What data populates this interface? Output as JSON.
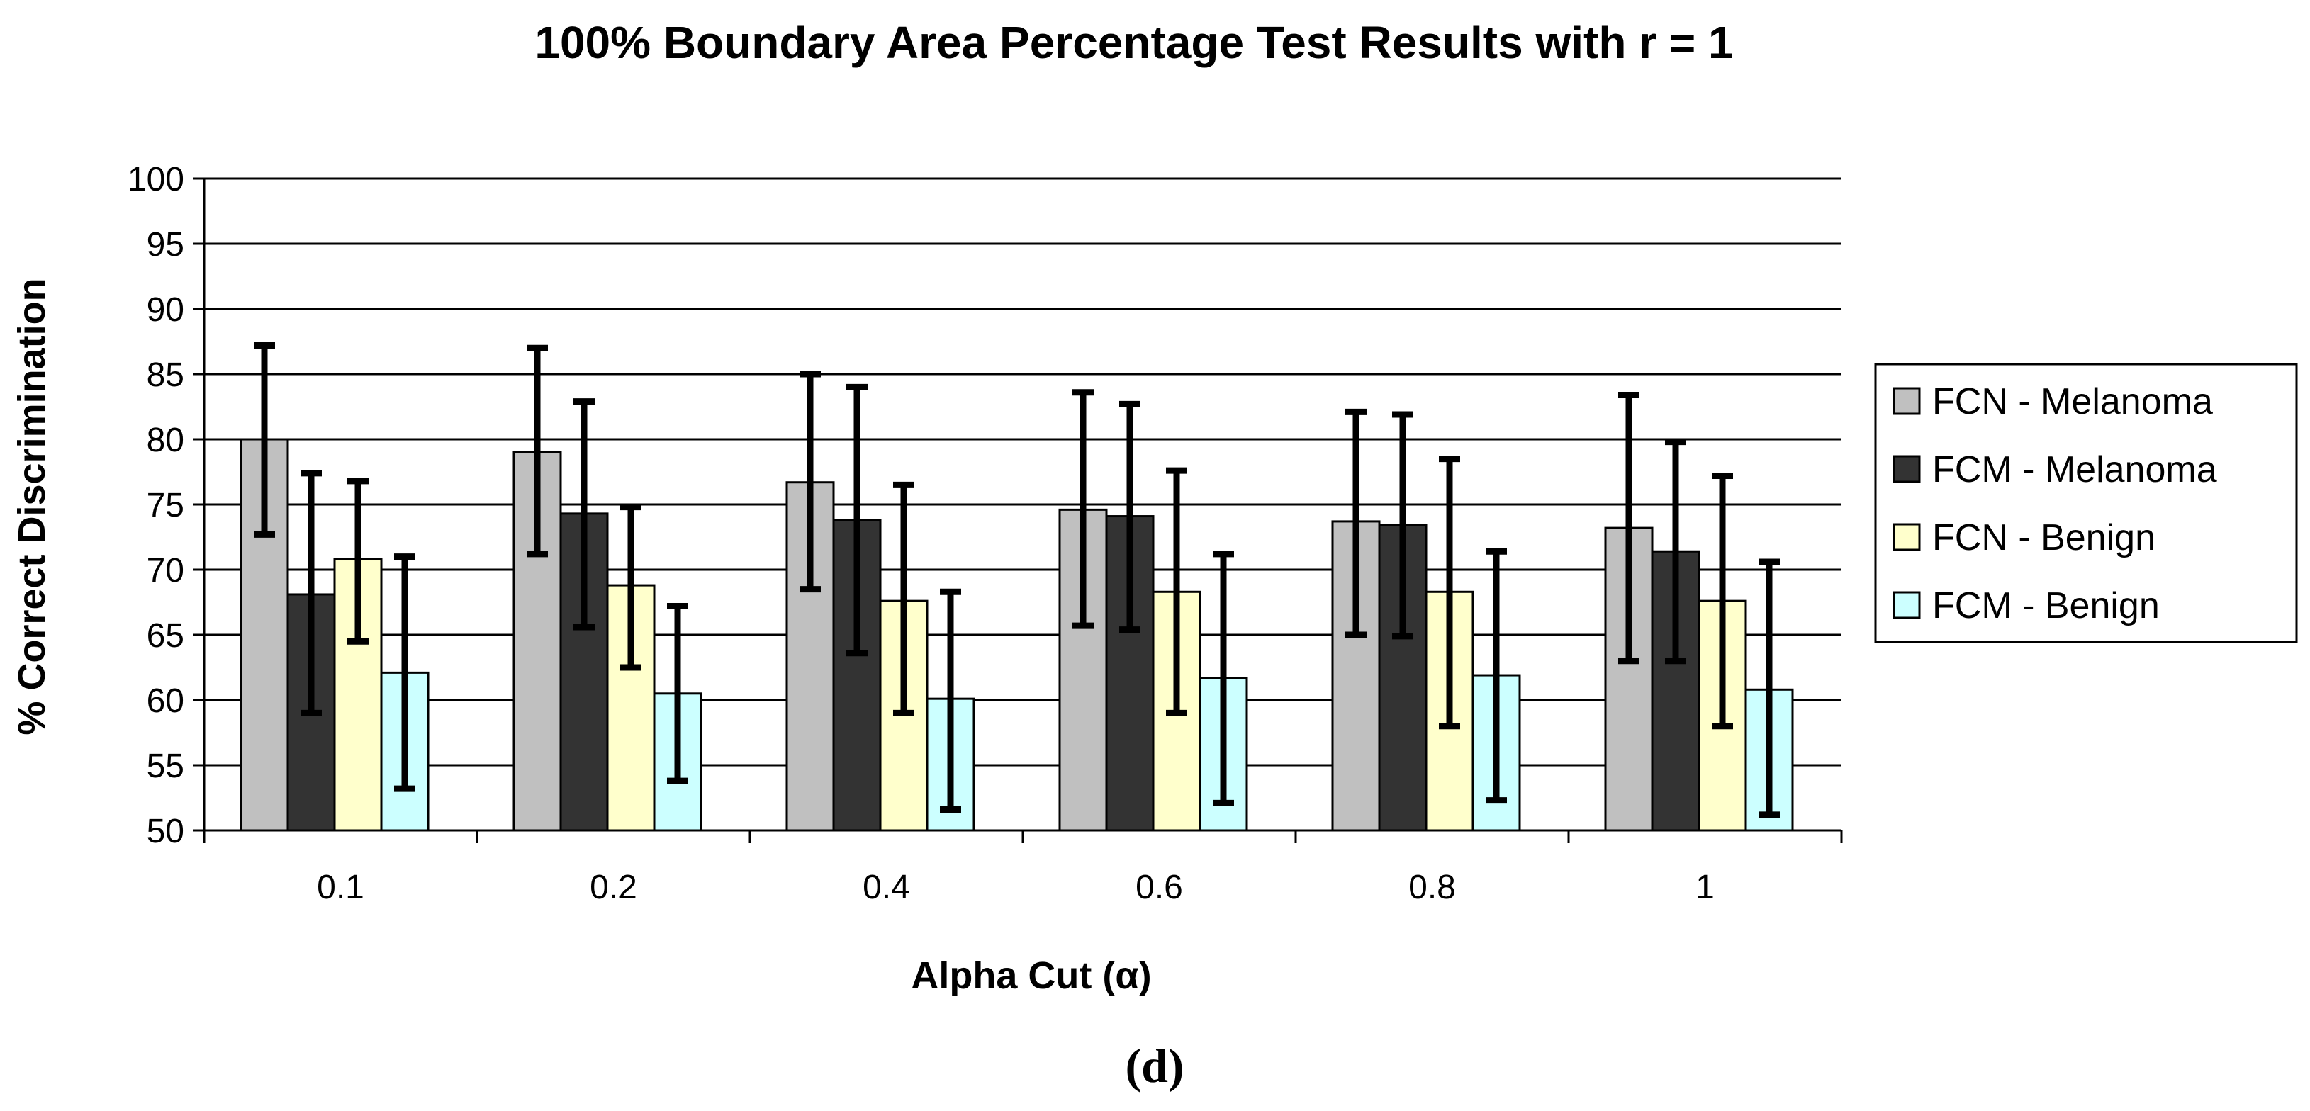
{
  "chart_data": {
    "type": "bar",
    "title": "100% Boundary Area Percentage Test Results with r = 1",
    "xlabel": "Alpha Cut (α)",
    "ylabel": "% Correct Discrimination",
    "ylim": [
      50,
      100
    ],
    "ytick_step": 5,
    "grid": true,
    "legend_position": "right",
    "categories": [
      "0.1",
      "0.2",
      "0.4",
      "0.6",
      "0.8",
      "1"
    ],
    "series": [
      {
        "name": "FCN - Melanoma",
        "color": "#c0c0c0",
        "values": [
          80.0,
          79.0,
          76.7,
          74.6,
          73.7,
          73.2
        ],
        "error_high": [
          87.2,
          87.0,
          85.0,
          83.6,
          82.1,
          83.4
        ],
        "error_low": [
          72.7,
          71.2,
          68.5,
          65.7,
          65.0,
          63.0
        ]
      },
      {
        "name": "FCM - Melanoma",
        "color": "#333333",
        "values": [
          68.1,
          74.3,
          73.8,
          74.1,
          73.4,
          71.4
        ],
        "error_high": [
          77.4,
          82.9,
          84.0,
          82.7,
          81.9,
          79.8
        ],
        "error_low": [
          59.0,
          65.6,
          63.6,
          65.4,
          64.9,
          63.0
        ]
      },
      {
        "name": "FCN - Benign",
        "color": "#ffffcc",
        "values": [
          70.8,
          68.8,
          67.6,
          68.3,
          68.3,
          67.6
        ],
        "error_high": [
          76.8,
          74.8,
          76.5,
          77.6,
          78.5,
          77.2
        ],
        "error_low": [
          64.5,
          62.5,
          59.0,
          59.0,
          58.0,
          58.0
        ]
      },
      {
        "name": "FCM - Benign",
        "color": "#ccffff",
        "values": [
          62.1,
          60.5,
          60.1,
          61.7,
          61.9,
          60.8
        ],
        "error_high": [
          71.0,
          67.2,
          68.3,
          71.2,
          71.4,
          70.6
        ],
        "error_low": [
          53.2,
          53.8,
          51.6,
          52.1,
          52.3,
          51.2
        ]
      }
    ]
  },
  "caption": "(d)"
}
